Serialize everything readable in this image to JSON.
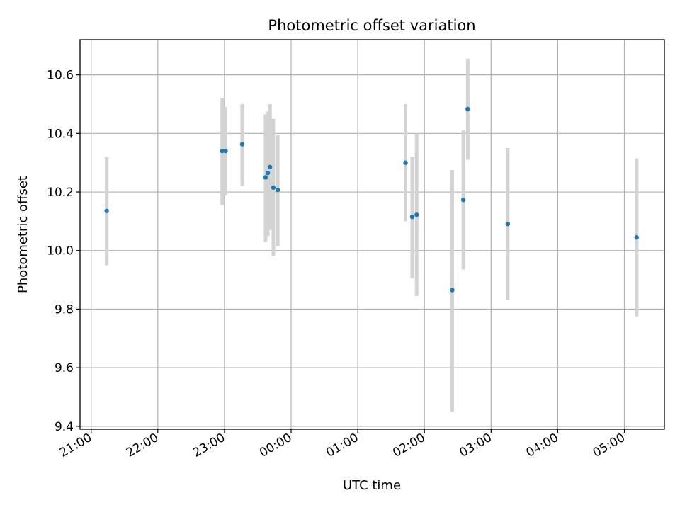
{
  "chart_data": {
    "type": "scatter",
    "title": "Photometric offset variation",
    "xlabel": "UTC time",
    "ylabel": "Photometric offset",
    "grid": true,
    "x_ticks": [
      "21:00",
      "22:00",
      "23:00",
      "00:00",
      "01:00",
      "02:00",
      "03:00",
      "04:00",
      "05:00"
    ],
    "y_ticks": [
      "9.4",
      "9.6",
      "9.8",
      "10.0",
      "10.2",
      "10.4",
      "10.6"
    ],
    "xlim": [
      "20:50",
      "05:36"
    ],
    "ylim": [
      9.39,
      10.72
    ],
    "colors": {
      "points": "#1f77b4",
      "error_bars": "#d3d3d3",
      "grid": "#b0b0b0"
    },
    "points": [
      {
        "time": "21:14",
        "y": 10.135,
        "err_low": 9.95,
        "err_high": 10.32
      },
      {
        "time": "22:58",
        "y": 10.34,
        "err_low": 10.155,
        "err_high": 10.52
      },
      {
        "time": "23:01",
        "y": 10.34,
        "err_low": 10.19,
        "err_high": 10.49
      },
      {
        "time": "23:16",
        "y": 10.363,
        "err_low": 10.22,
        "err_high": 10.5
      },
      {
        "time": "23:37",
        "y": 10.25,
        "err_low": 10.03,
        "err_high": 10.465
      },
      {
        "time": "23:39",
        "y": 10.265,
        "err_low": 10.05,
        "err_high": 10.475
      },
      {
        "time": "23:41",
        "y": 10.285,
        "err_low": 10.07,
        "err_high": 10.5
      },
      {
        "time": "23:44",
        "y": 10.215,
        "err_low": 9.98,
        "err_high": 10.45
      },
      {
        "time": "23:48",
        "y": 10.207,
        "err_low": 10.015,
        "err_high": 10.395
      },
      {
        "time": "01:43",
        "y": 10.3,
        "err_low": 10.1,
        "err_high": 10.5
      },
      {
        "time": "01:49",
        "y": 10.115,
        "err_low": 9.905,
        "err_high": 10.32
      },
      {
        "time": "01:53",
        "y": 10.122,
        "err_low": 9.845,
        "err_high": 10.4
      },
      {
        "time": "02:25",
        "y": 9.865,
        "err_low": 9.45,
        "err_high": 10.275
      },
      {
        "time": "02:35",
        "y": 10.173,
        "err_low": 9.935,
        "err_high": 10.41
      },
      {
        "time": "02:39",
        "y": 10.483,
        "err_low": 10.31,
        "err_high": 10.655
      },
      {
        "time": "03:15",
        "y": 10.091,
        "err_low": 9.83,
        "err_high": 10.35
      },
      {
        "time": "05:11",
        "y": 10.045,
        "err_low": 9.775,
        "err_high": 10.315
      }
    ]
  }
}
